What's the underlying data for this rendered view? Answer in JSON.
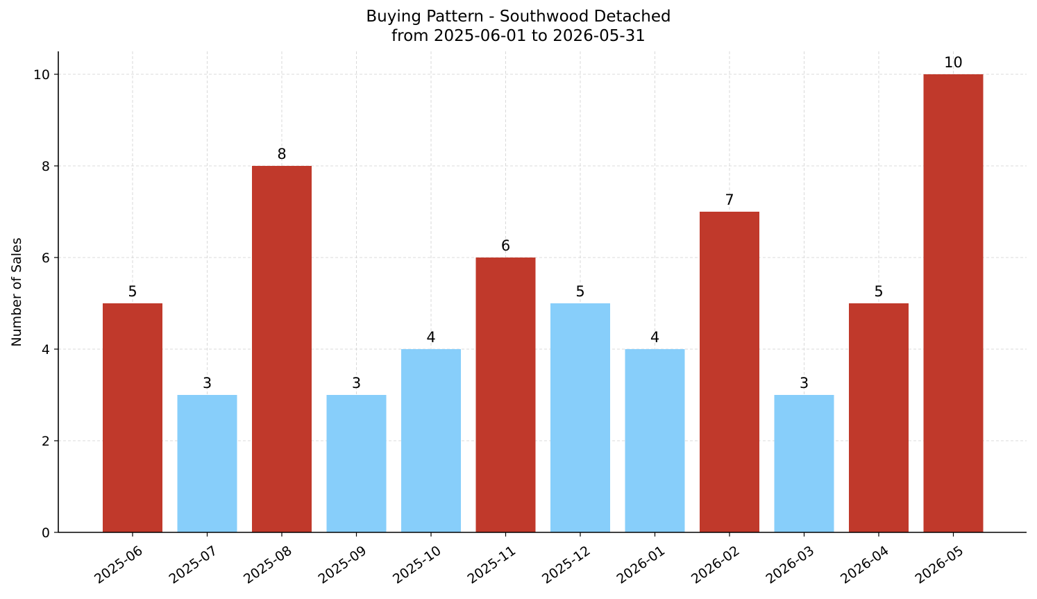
{
  "chart_data": {
    "type": "bar",
    "title": "Buying Pattern - Southwood Detached",
    "subtitle": "from 2025-06-01 to 2026-05-31",
    "xlabel": "",
    "ylabel": "Number of Sales",
    "categories": [
      "2025-06",
      "2025-07",
      "2025-08",
      "2025-09",
      "2025-10",
      "2025-11",
      "2025-12",
      "2026-01",
      "2026-02",
      "2026-03",
      "2026-04",
      "2026-05"
    ],
    "values": [
      5,
      3,
      8,
      3,
      4,
      6,
      5,
      4,
      7,
      3,
      5,
      10
    ],
    "highlight": [
      true,
      false,
      true,
      false,
      false,
      true,
      false,
      false,
      true,
      false,
      true,
      true
    ],
    "ylim": [
      0,
      10.5
    ],
    "yticks": [
      0,
      2,
      4,
      6,
      8,
      10
    ],
    "grid": true,
    "colors": {
      "high": "#c0392b",
      "low": "#87cefa",
      "grid": "#d0d0d0",
      "axis": "#000000"
    }
  }
}
